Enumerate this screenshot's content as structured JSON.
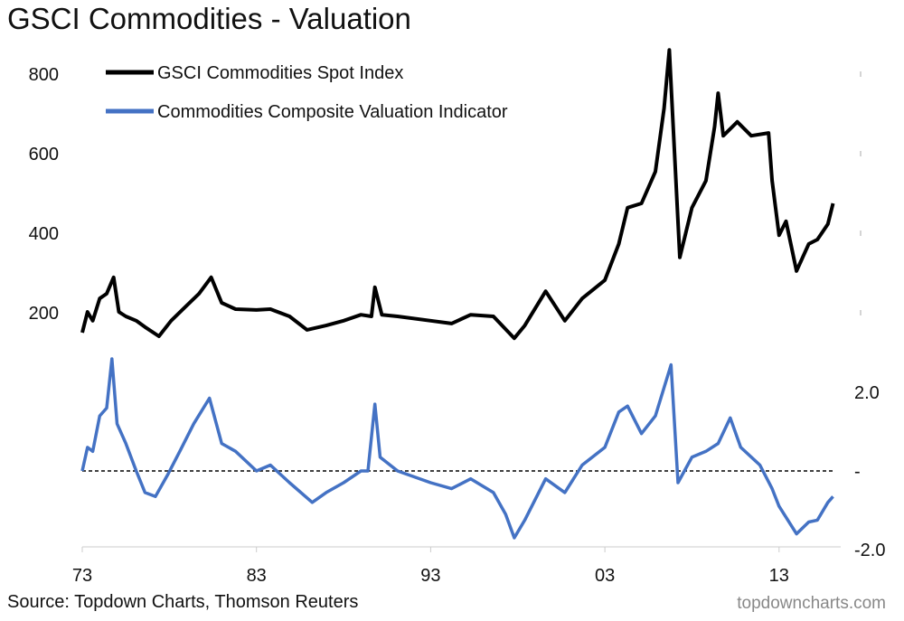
{
  "chart_data": [
    {
      "type": "line",
      "title": "GSCI Commodities - Valuation",
      "source": "Source: Topdown Charts, Thomson Reuters",
      "watermark": "topdowncharts.com",
      "x_ticks": [
        "73",
        "83",
        "93",
        "03",
        "13"
      ],
      "x_tick_years": [
        1973,
        1983,
        1993,
        2003,
        2013
      ],
      "xlim": [
        1973,
        2017
      ],
      "left_axis": {
        "ticks": [
          "200",
          "400",
          "600",
          "800"
        ],
        "tick_values": [
          200,
          400,
          600,
          800
        ],
        "ylim": [
          0,
          880
        ]
      },
      "right_axis": {
        "ticks": [
          "2.0",
          "-",
          "-2.0"
        ],
        "tick_values": [
          2,
          0,
          -2
        ],
        "ylim": [
          -2,
          2.9
        ]
      },
      "reference_line": {
        "value": 0,
        "style": "dashed",
        "axis": "right"
      },
      "legend_position": "top-left",
      "series": [
        {
          "name": "GSCI Commodities Spot Index",
          "axis": "left",
          "color": "#000000",
          "x": [
            1973.0,
            1973.3,
            1973.6,
            1974.0,
            1974.4,
            1974.8,
            1975.1,
            1975.5,
            1976.1,
            1976.6,
            1977.4,
            1978.1,
            1978.9,
            1979.7,
            1980.4,
            1981.0,
            1981.8,
            1983.0,
            1983.8,
            1984.9,
            1985.9,
            1987.0,
            1988.0,
            1989.0,
            1989.6,
            1989.8,
            1990.2,
            1991.1,
            1993.0,
            1994.2,
            1995.3,
            1996.6,
            1997.8,
            1998.4,
            1999.6,
            2000.7,
            2001.7,
            2003.0,
            2003.8,
            2004.3,
            2005.1,
            2005.9,
            2006.4,
            2006.7,
            2007.0,
            2007.3,
            2008.0,
            2008.8,
            2009.3,
            2009.5,
            2009.8,
            2010.6,
            2011.4,
            2012.4,
            2012.6,
            2013.0,
            2013.4,
            2014.0,
            2014.7,
            2015.2,
            2015.8,
            2016.1
          ],
          "y": [
            150,
            202,
            180,
            236,
            248,
            289,
            202,
            191,
            180,
            164,
            141,
            180,
            214,
            248,
            289,
            225,
            209,
            207,
            209,
            191,
            157,
            168,
            180,
            195,
            191,
            264,
            195,
            191,
            180,
            173,
            195,
            191,
            136,
            168,
            254,
            180,
            236,
            282,
            373,
            464,
            475,
            555,
            714,
            861,
            600,
            339,
            464,
            532,
            668,
            752,
            645,
            680,
            645,
            652,
            532,
            395,
            430,
            305,
            373,
            384,
            423,
            475
          ]
        },
        {
          "name": "Commodities Composite Valuation Indicator",
          "axis": "right",
          "color": "#4472C4",
          "x": [
            1973.0,
            1973.3,
            1973.6,
            1974.0,
            1974.4,
            1974.7,
            1975.0,
            1975.5,
            1976.1,
            1976.6,
            1977.2,
            1977.9,
            1978.6,
            1979.4,
            1980.3,
            1981.0,
            1981.8,
            1983.0,
            1983.8,
            1984.9,
            1986.2,
            1987.0,
            1988.0,
            1989.0,
            1989.4,
            1989.8,
            1990.1,
            1991.1,
            1993.0,
            1994.2,
            1995.3,
            1996.6,
            1997.3,
            1997.8,
            1998.4,
            1999.6,
            2000.7,
            2001.7,
            2003.0,
            2003.8,
            2004.3,
            2005.1,
            2005.9,
            2006.8,
            2007.2,
            2008.0,
            2008.8,
            2009.5,
            2010.2,
            2010.8,
            2011.9,
            2012.6,
            2013.0,
            2014.0,
            2014.7,
            2015.2,
            2015.8,
            2016.1
          ],
          "y": [
            0.0,
            0.6,
            0.5,
            1.4,
            1.6,
            2.85,
            1.2,
            0.7,
            0.0,
            -0.55,
            -0.65,
            -0.1,
            0.5,
            1.2,
            1.85,
            0.7,
            0.5,
            0.0,
            0.15,
            -0.3,
            -0.8,
            -0.55,
            -0.3,
            0.0,
            0.0,
            1.7,
            0.35,
            0.0,
            -0.3,
            -0.45,
            -0.2,
            -0.55,
            -1.1,
            -1.7,
            -1.25,
            -0.2,
            -0.55,
            0.15,
            0.6,
            1.5,
            1.65,
            0.95,
            1.4,
            2.7,
            -0.3,
            0.35,
            0.5,
            0.7,
            1.35,
            0.6,
            0.15,
            -0.45,
            -0.9,
            -1.6,
            -1.3,
            -1.25,
            -0.8,
            -0.65
          ]
        }
      ]
    }
  ]
}
